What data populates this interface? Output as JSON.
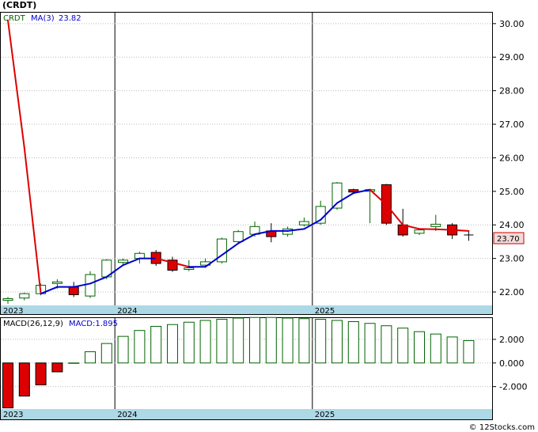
{
  "chart_data": [
    {
      "type": "candlestick",
      "title": "(CRDT)",
      "legend": [
        {
          "name": "CRDT",
          "color": "#006400"
        },
        {
          "name": "MA(3)",
          "value": "23.82",
          "color": "#0000cc"
        }
      ],
      "y_ticks": [
        "30.00",
        "29.00",
        "28.00",
        "27.00",
        "26.00",
        "25.00",
        "24.00",
        "23.00",
        "22.00"
      ],
      "ylim": [
        21.6,
        30.35
      ],
      "x_labels": [
        "2023",
        "2024",
        "2025"
      ],
      "last_price": "23.70",
      "candles": [
        {
          "o": 21.75,
          "h": 21.85,
          "l": 21.65,
          "c": 21.8
        },
        {
          "o": 21.82,
          "h": 21.98,
          "l": 21.75,
          "c": 21.95
        },
        {
          "o": 21.95,
          "h": 22.25,
          "l": 21.9,
          "c": 22.2
        },
        {
          "o": 22.3,
          "h": 22.38,
          "l": 22.1,
          "c": 22.3
        },
        {
          "o": 22.15,
          "h": 22.3,
          "l": 21.85,
          "c": 21.92
        },
        {
          "o": 21.88,
          "h": 22.62,
          "l": 21.82,
          "c": 22.52
        },
        {
          "o": 22.45,
          "h": 22.98,
          "l": 22.38,
          "c": 22.95
        },
        {
          "o": 22.88,
          "h": 23.0,
          "l": 22.78,
          "c": 22.95
        },
        {
          "o": 23.0,
          "h": 23.2,
          "l": 22.85,
          "c": 23.15
        },
        {
          "o": 23.18,
          "h": 23.25,
          "l": 22.78,
          "c": 22.85
        },
        {
          "o": 22.95,
          "h": 23.05,
          "l": 22.6,
          "c": 22.65
        },
        {
          "o": 22.72,
          "h": 22.95,
          "l": 22.62,
          "c": 22.72
        },
        {
          "o": 22.8,
          "h": 23.0,
          "l": 22.72,
          "c": 22.9
        },
        {
          "o": 22.9,
          "h": 23.62,
          "l": 22.85,
          "c": 23.58
        },
        {
          "o": 23.5,
          "h": 23.85,
          "l": 23.45,
          "c": 23.8
        },
        {
          "o": 23.72,
          "h": 24.1,
          "l": 23.65,
          "c": 23.95
        },
        {
          "o": 23.82,
          "h": 24.05,
          "l": 23.48,
          "c": 23.65
        },
        {
          "o": 23.72,
          "h": 23.95,
          "l": 23.65,
          "c": 23.88
        },
        {
          "o": 24.0,
          "h": 24.22,
          "l": 23.95,
          "c": 24.1
        },
        {
          "o": 24.05,
          "h": 24.72,
          "l": 24.0,
          "c": 24.55
        },
        {
          "o": 24.5,
          "h": 25.28,
          "l": 24.45,
          "c": 25.25
        },
        {
          "o": 25.05,
          "h": 25.08,
          "l": 24.92,
          "c": 24.98
        },
        {
          "o": 25.05,
          "h": 25.08,
          "l": 24.05,
          "c": 25.05
        },
        {
          "o": 25.2,
          "h": 25.22,
          "l": 24.0,
          "c": 24.05
        },
        {
          "o": 24.0,
          "h": 24.48,
          "l": 23.65,
          "c": 23.7
        },
        {
          "o": 23.75,
          "h": 23.9,
          "l": 23.7,
          "c": 23.85
        },
        {
          "o": 23.95,
          "h": 24.3,
          "l": 23.82,
          "c": 24.02
        },
        {
          "o": 24.0,
          "h": 24.05,
          "l": 23.58,
          "c": 23.7
        },
        {
          "o": 23.7,
          "h": 23.72,
          "l": 23.62,
          "c": 23.7
        }
      ],
      "ma3": [
        30.1,
        26.3,
        21.95,
        22.15,
        22.15,
        22.25,
        22.45,
        22.8,
        23.0,
        23.0,
        22.88,
        22.75,
        22.75,
        23.1,
        23.45,
        23.72,
        23.82,
        23.82,
        23.88,
        24.15,
        24.65,
        24.95,
        25.05,
        24.6,
        24.0,
        23.88,
        23.87,
        23.85,
        23.82
      ]
    },
    {
      "type": "bar",
      "title": "MACD(26,12,9)",
      "value_label": "MACD:1.895",
      "y_ticks": [
        "2.000",
        "0.000",
        "-2.000"
      ],
      "ylim": [
        -3.9,
        3.8
      ],
      "values": [
        -3.8,
        -2.8,
        -1.85,
        -0.75,
        0.0,
        0.95,
        1.65,
        2.25,
        2.75,
        3.1,
        3.25,
        3.45,
        3.6,
        3.7,
        3.8,
        3.85,
        3.85,
        3.8,
        3.75,
        3.7,
        3.6,
        3.5,
        3.35,
        3.15,
        2.95,
        2.65,
        2.45,
        2.2,
        1.895
      ]
    }
  ]
}
